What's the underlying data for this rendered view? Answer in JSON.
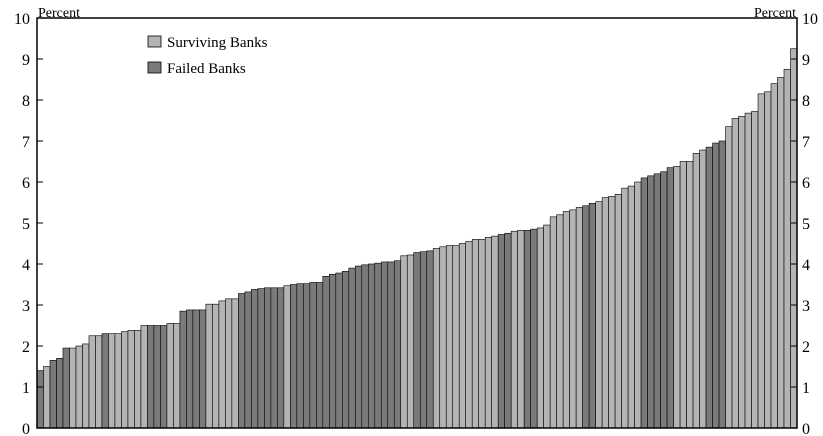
{
  "chart_data": {
    "type": "bar",
    "title": "",
    "xlabel": "",
    "ylabel_left": "Percent",
    "ylabel_right": "Percent",
    "ylim": [
      0,
      10
    ],
    "yticks": [
      "0",
      "1",
      "2",
      "3",
      "4",
      "5",
      "6",
      "7",
      "8",
      "9",
      "10"
    ],
    "grid": false,
    "legend_position": "top-left",
    "series": [
      {
        "name": "Surviving Banks",
        "color": "#b4b4b4"
      },
      {
        "name": "Failed Banks",
        "color": "#7a7a7a"
      }
    ],
    "bars": [
      {
        "v": 1.4,
        "s": 1
      },
      {
        "v": 1.5,
        "s": 0
      },
      {
        "v": 1.65,
        "s": 1
      },
      {
        "v": 1.7,
        "s": 1
      },
      {
        "v": 1.95,
        "s": 1
      },
      {
        "v": 1.95,
        "s": 0
      },
      {
        "v": 2.0,
        "s": 0
      },
      {
        "v": 2.05,
        "s": 0
      },
      {
        "v": 2.25,
        "s": 0
      },
      {
        "v": 2.25,
        "s": 0
      },
      {
        "v": 2.3,
        "s": 1
      },
      {
        "v": 2.3,
        "s": 0
      },
      {
        "v": 2.3,
        "s": 0
      },
      {
        "v": 2.35,
        "s": 0
      },
      {
        "v": 2.38,
        "s": 0
      },
      {
        "v": 2.38,
        "s": 0
      },
      {
        "v": 2.5,
        "s": 0
      },
      {
        "v": 2.5,
        "s": 1
      },
      {
        "v": 2.5,
        "s": 1
      },
      {
        "v": 2.5,
        "s": 1
      },
      {
        "v": 2.55,
        "s": 0
      },
      {
        "v": 2.55,
        "s": 0
      },
      {
        "v": 2.85,
        "s": 1
      },
      {
        "v": 2.88,
        "s": 1
      },
      {
        "v": 2.88,
        "s": 1
      },
      {
        "v": 2.88,
        "s": 1
      },
      {
        "v": 3.02,
        "s": 0
      },
      {
        "v": 3.02,
        "s": 0
      },
      {
        "v": 3.1,
        "s": 0
      },
      {
        "v": 3.15,
        "s": 0
      },
      {
        "v": 3.15,
        "s": 0
      },
      {
        "v": 3.28,
        "s": 1
      },
      {
        "v": 3.32,
        "s": 1
      },
      {
        "v": 3.38,
        "s": 1
      },
      {
        "v": 3.4,
        "s": 1
      },
      {
        "v": 3.42,
        "s": 1
      },
      {
        "v": 3.42,
        "s": 1
      },
      {
        "v": 3.42,
        "s": 1
      },
      {
        "v": 3.47,
        "s": 0
      },
      {
        "v": 3.5,
        "s": 1
      },
      {
        "v": 3.52,
        "s": 1
      },
      {
        "v": 3.52,
        "s": 1
      },
      {
        "v": 3.55,
        "s": 1
      },
      {
        "v": 3.55,
        "s": 1
      },
      {
        "v": 3.7,
        "s": 1
      },
      {
        "v": 3.75,
        "s": 1
      },
      {
        "v": 3.78,
        "s": 1
      },
      {
        "v": 3.82,
        "s": 1
      },
      {
        "v": 3.9,
        "s": 1
      },
      {
        "v": 3.95,
        "s": 1
      },
      {
        "v": 3.98,
        "s": 1
      },
      {
        "v": 4.0,
        "s": 1
      },
      {
        "v": 4.02,
        "s": 1
      },
      {
        "v": 4.05,
        "s": 1
      },
      {
        "v": 4.05,
        "s": 1
      },
      {
        "v": 4.08,
        "s": 1
      },
      {
        "v": 4.2,
        "s": 0
      },
      {
        "v": 4.22,
        "s": 0
      },
      {
        "v": 4.28,
        "s": 1
      },
      {
        "v": 4.3,
        "s": 1
      },
      {
        "v": 4.32,
        "s": 1
      },
      {
        "v": 4.38,
        "s": 0
      },
      {
        "v": 4.42,
        "s": 0
      },
      {
        "v": 4.45,
        "s": 0
      },
      {
        "v": 4.45,
        "s": 0
      },
      {
        "v": 4.5,
        "s": 0
      },
      {
        "v": 4.55,
        "s": 0
      },
      {
        "v": 4.6,
        "s": 0
      },
      {
        "v": 4.6,
        "s": 0
      },
      {
        "v": 4.65,
        "s": 0
      },
      {
        "v": 4.68,
        "s": 0
      },
      {
        "v": 4.72,
        "s": 1
      },
      {
        "v": 4.75,
        "s": 1
      },
      {
        "v": 4.8,
        "s": 0
      },
      {
        "v": 4.82,
        "s": 0
      },
      {
        "v": 4.82,
        "s": 1
      },
      {
        "v": 4.85,
        "s": 1
      },
      {
        "v": 4.88,
        "s": 0
      },
      {
        "v": 4.95,
        "s": 0
      },
      {
        "v": 5.15,
        "s": 0
      },
      {
        "v": 5.2,
        "s": 0
      },
      {
        "v": 5.28,
        "s": 0
      },
      {
        "v": 5.32,
        "s": 0
      },
      {
        "v": 5.38,
        "s": 0
      },
      {
        "v": 5.42,
        "s": 1
      },
      {
        "v": 5.48,
        "s": 1
      },
      {
        "v": 5.52,
        "s": 0
      },
      {
        "v": 5.62,
        "s": 0
      },
      {
        "v": 5.65,
        "s": 0
      },
      {
        "v": 5.7,
        "s": 0
      },
      {
        "v": 5.85,
        "s": 0
      },
      {
        "v": 5.9,
        "s": 0
      },
      {
        "v": 6.0,
        "s": 0
      },
      {
        "v": 6.1,
        "s": 1
      },
      {
        "v": 6.15,
        "s": 1
      },
      {
        "v": 6.2,
        "s": 1
      },
      {
        "v": 6.25,
        "s": 1
      },
      {
        "v": 6.35,
        "s": 1
      },
      {
        "v": 6.38,
        "s": 0
      },
      {
        "v": 6.5,
        "s": 0
      },
      {
        "v": 6.5,
        "s": 0
      },
      {
        "v": 6.7,
        "s": 0
      },
      {
        "v": 6.78,
        "s": 0
      },
      {
        "v": 6.85,
        "s": 1
      },
      {
        "v": 6.95,
        "s": 1
      },
      {
        "v": 7.0,
        "s": 1
      },
      {
        "v": 7.35,
        "s": 0
      },
      {
        "v": 7.55,
        "s": 0
      },
      {
        "v": 7.6,
        "s": 0
      },
      {
        "v": 7.68,
        "s": 0
      },
      {
        "v": 7.72,
        "s": 0
      },
      {
        "v": 8.15,
        "s": 0
      },
      {
        "v": 8.2,
        "s": 0
      },
      {
        "v": 8.4,
        "s": 0
      },
      {
        "v": 8.55,
        "s": 0
      },
      {
        "v": 8.75,
        "s": 0
      },
      {
        "v": 9.25,
        "s": 0
      }
    ]
  }
}
